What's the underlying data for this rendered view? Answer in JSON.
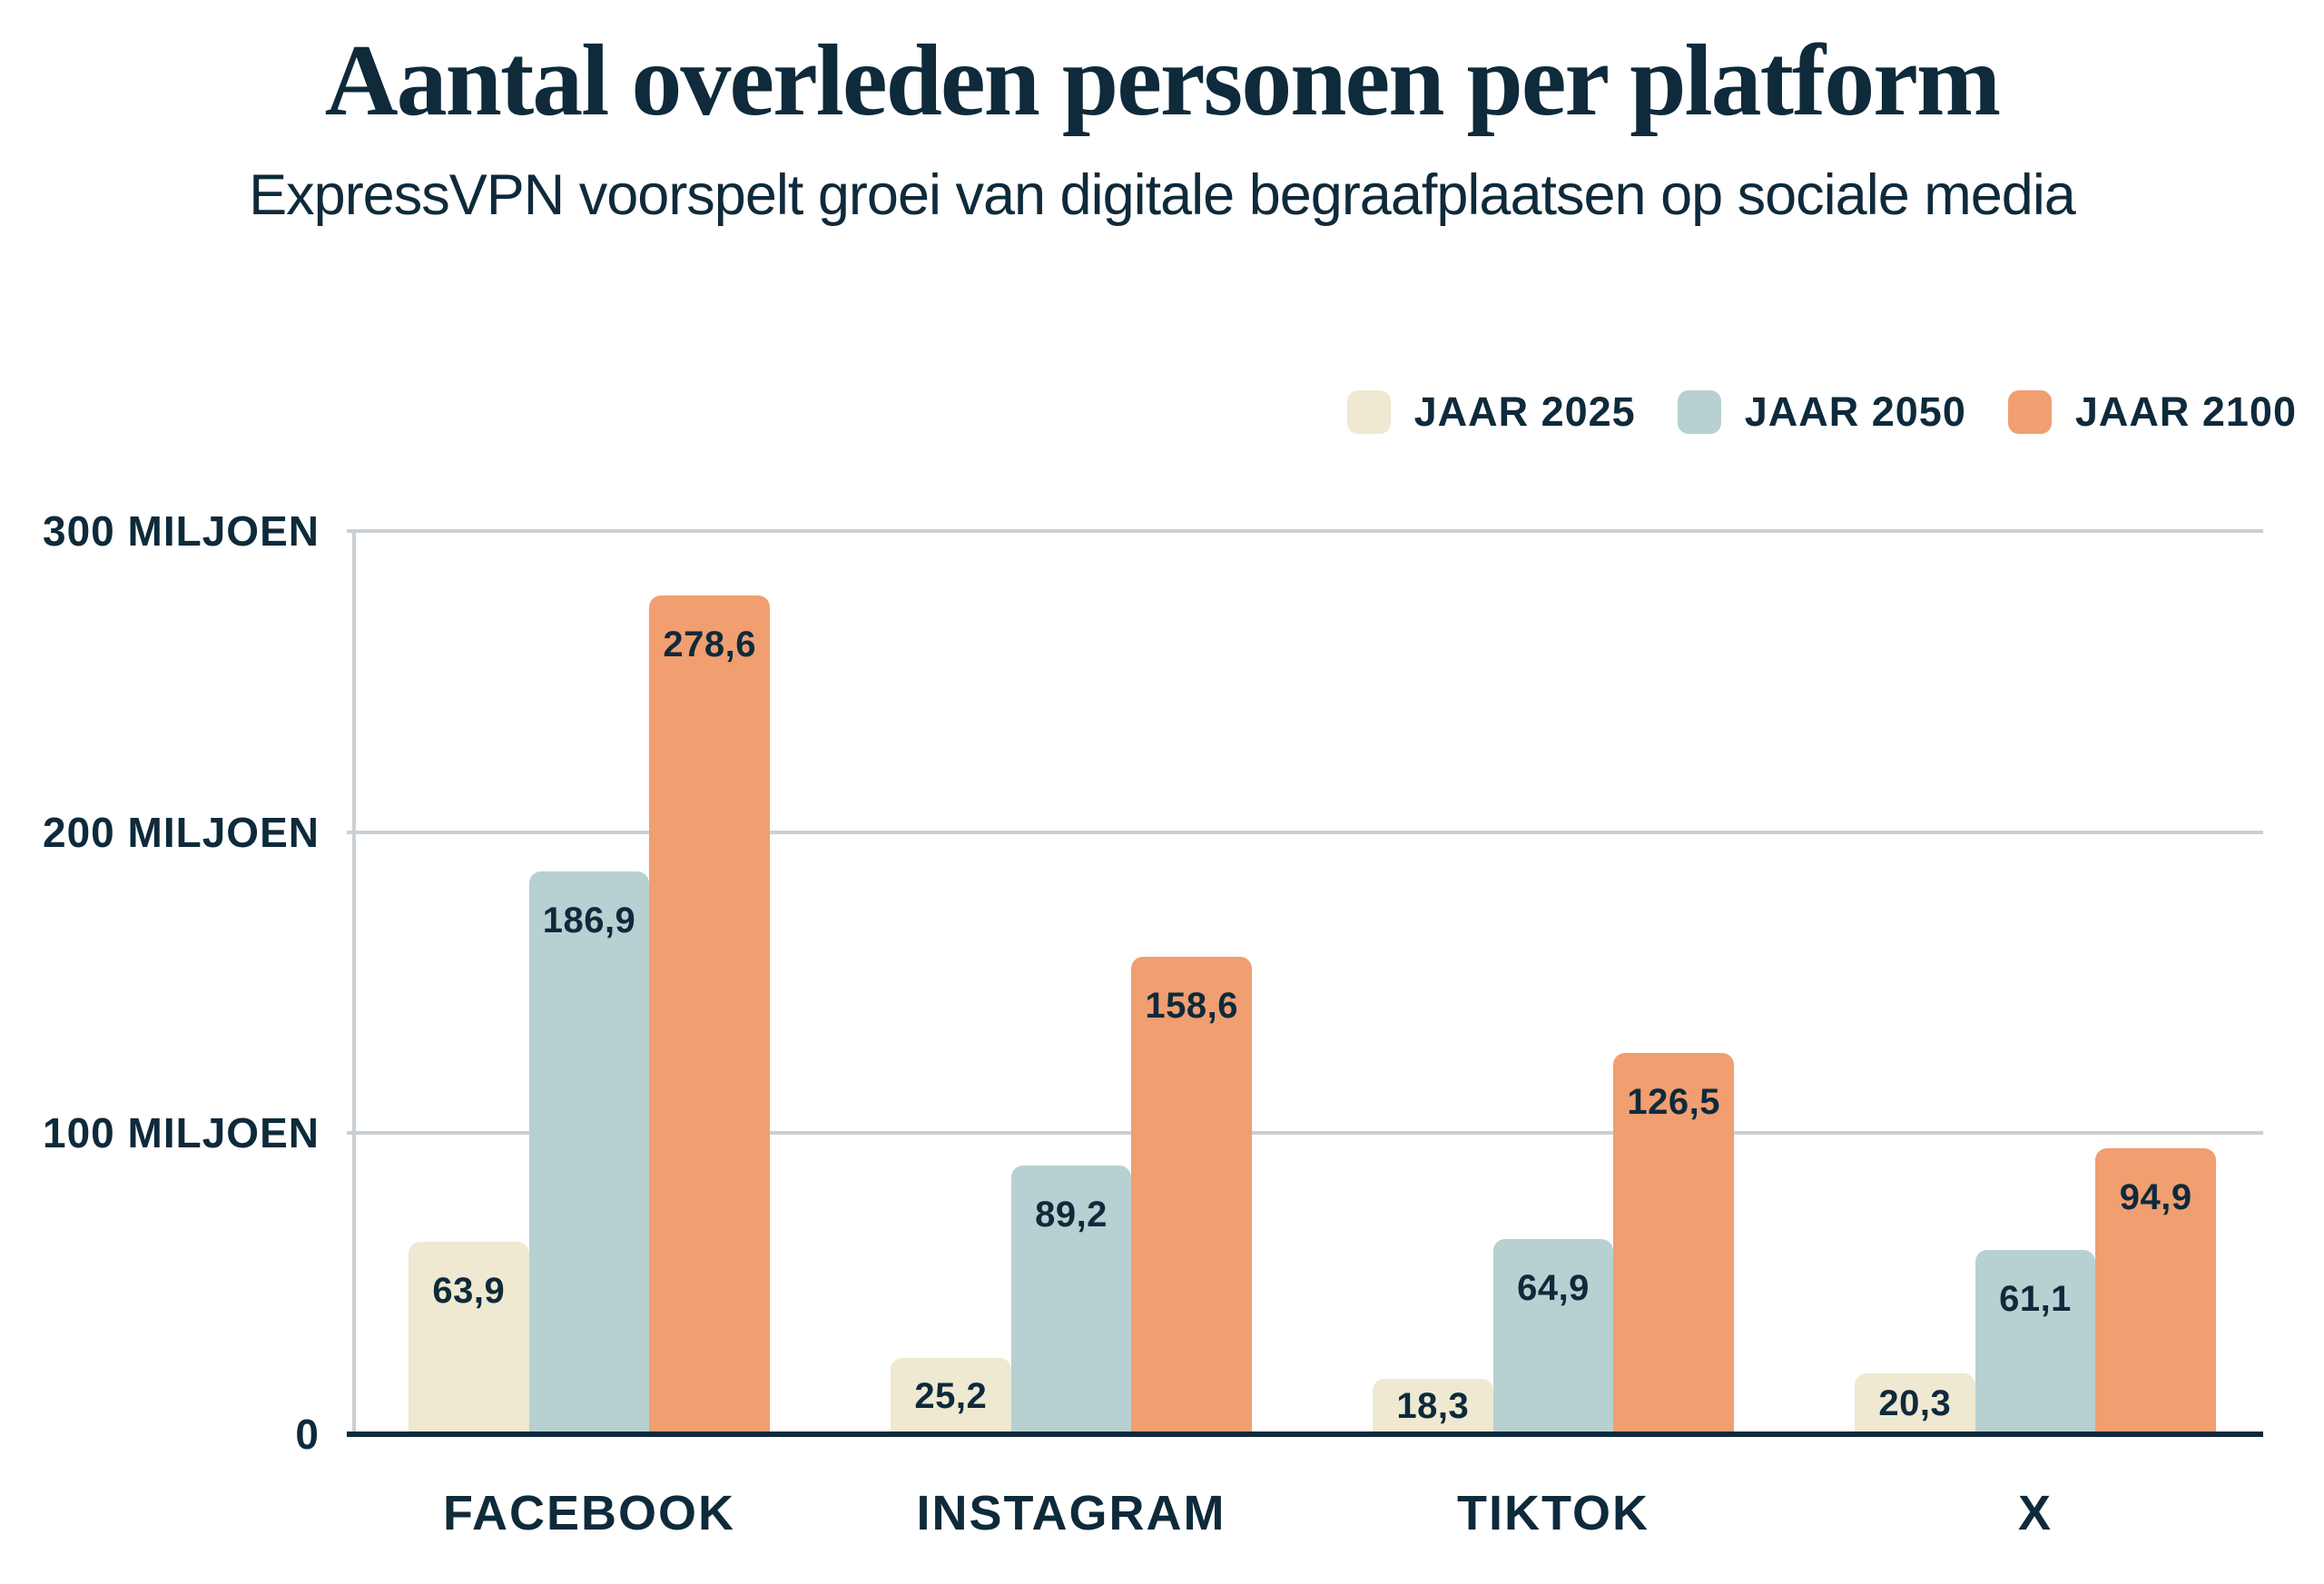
{
  "header": {
    "title": "Aantal overleden personen per platform",
    "subtitle": "ExpressVPN voorspelt groei van digitale begraafplaatsen op sociale media"
  },
  "colors": {
    "navy": "#0e2a3b",
    "cream": "#eee9d0",
    "blue": "#b7d0d2",
    "orange": "#f19e70",
    "gridline": "#c9d0d5",
    "background": "#ffffff"
  },
  "legend": {
    "items": [
      {
        "label": "JAAR 2025",
        "color": "#eee9d0"
      },
      {
        "label": "JAAR 2050",
        "color": "#b7d0d2"
      },
      {
        "label": "JAAR 2100",
        "color": "#f19e70"
      }
    ]
  },
  "y_axis": {
    "ticks": [
      {
        "label": "300 MILJOEN",
        "value": 300
      },
      {
        "label": "200 MILJOEN",
        "value": 200
      },
      {
        "label": "100 MILJOEN",
        "value": 100
      },
      {
        "label": "0",
        "value": 0
      }
    ]
  },
  "chart_data": {
    "type": "bar",
    "title": "Aantal overleden personen per platform",
    "subtitle": "ExpressVPN voorspelt groei van digitale begraafplaatsen op sociale media",
    "categories": [
      "FACEBOOK",
      "INSTAGRAM",
      "TIKTOK",
      "X"
    ],
    "series": [
      {
        "name": "JAAR 2025",
        "color": "#eee9d0",
        "values": [
          63.9,
          25.2,
          18.3,
          20.3
        ],
        "labels": [
          "63,9",
          "25,2",
          "18,3",
          "20,3"
        ]
      },
      {
        "name": "JAAR 2050",
        "color": "#b7d0d2",
        "values": [
          186.9,
          89.2,
          64.9,
          61.1
        ],
        "labels": [
          "186,9",
          "89,2",
          "64,9",
          "61,1"
        ]
      },
      {
        "name": "JAAR 2100",
        "color": "#f19e70",
        "values": [
          278.6,
          158.6,
          126.5,
          94.9
        ],
        "labels": [
          "278,6",
          "158,6",
          "126,5",
          "94,9"
        ]
      }
    ],
    "unit": "miljoen",
    "ylim": [
      0,
      300
    ],
    "grid": true,
    "legend_position": "top-right"
  }
}
